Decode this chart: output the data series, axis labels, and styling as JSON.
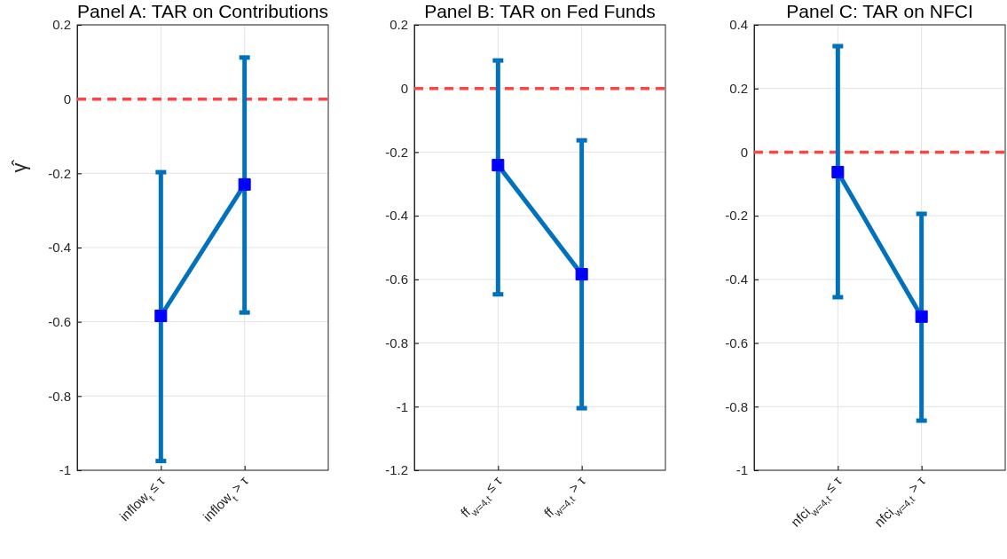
{
  "chart_data": [
    {
      "type": "line",
      "title": "Panel A: TAR on Contributions",
      "ylabel": "γ̂",
      "categories": [
        "inflow$_{t}$ ≤ τ",
        "inflow$_{t}$ > τ"
      ],
      "series": [
        {
          "color": "#0072bd",
          "values": [
            -0.584,
            -0.23
          ],
          "errors": [
            [
              -0.975,
              -0.197
            ],
            [
              -0.575,
              0.112
            ]
          ],
          "marker": "none"
        },
        {
          "type": "scatter",
          "color": "#0000ff",
          "x": [
            "inflow$_{t}$ ≤ τ",
            "inflow$_{t}$ > τ"
          ],
          "values": [
            -0.584,
            -0.23
          ],
          "marker": "square"
        }
      ],
      "ylim": [
        -1,
        0.2
      ],
      "yticks": [
        -1,
        -0.8,
        -0.6,
        -0.4,
        -0.2,
        0,
        0.2
      ],
      "grid": true,
      "ref_lines": [
        {
          "axis": "y",
          "value": 0,
          "color": "#ff4444",
          "line_style": "dashed"
        }
      ]
    },
    {
      "type": "line",
      "title": "Panel B: TAR on Fed Funds",
      "categories": [
        "ff$_{w=4,t}$ ≤ τ",
        "ff$_{w=4,t}$ > τ"
      ],
      "series": [
        {
          "color": "#0072bd",
          "values": [
            -0.241,
            -0.584
          ],
          "errors": [
            [
              -0.647,
              0.088
            ],
            [
              -1.005,
              -0.163
            ]
          ],
          "marker": "none"
        },
        {
          "type": "scatter",
          "color": "#0000ff",
          "x": [
            "ff$_{w=4,t}$ ≤ τ",
            "ff$_{w=4,t}$ > τ"
          ],
          "values": [
            -0.241,
            -0.584
          ],
          "marker": "square"
        }
      ],
      "ylim": [
        -1.2,
        0.2
      ],
      "yticks": [
        -1.2,
        -1,
        -0.8,
        -0.6,
        -0.4,
        -0.2,
        0,
        0.2
      ],
      "grid": true,
      "ref_lines": [
        {
          "axis": "y",
          "value": 0,
          "color": "#ff4444",
          "line_style": "dashed"
        }
      ]
    },
    {
      "type": "line",
      "title": "Panel C: TAR on NFCI",
      "categories": [
        "nfci$_{w=4,t}$ ≤ τ",
        "nfci$_{w=4,t}$ > τ"
      ],
      "series": [
        {
          "color": "#0072bd",
          "values": [
            -0.063,
            -0.517
          ],
          "errors": [
            [
              -0.456,
              0.333
            ],
            [
              -0.844,
              -0.194
            ]
          ],
          "marker": "none"
        },
        {
          "type": "scatter",
          "color": "#0000ff",
          "x": [
            "nfci$_{w=4,t}$ ≤ τ",
            "nfci$_{w=4,t}$ > τ"
          ],
          "values": [
            -0.063,
            -0.517
          ],
          "marker": "square"
        }
      ],
      "ylim": [
        -1,
        0.4
      ],
      "yticks": [
        -1,
        -0.8,
        -0.6,
        -0.4,
        -0.2,
        0,
        0.2,
        0.4
      ],
      "grid": true,
      "ref_lines": [
        {
          "axis": "y",
          "value": 0,
          "color": "#ff4444",
          "line_style": "dashed"
        }
      ]
    }
  ]
}
